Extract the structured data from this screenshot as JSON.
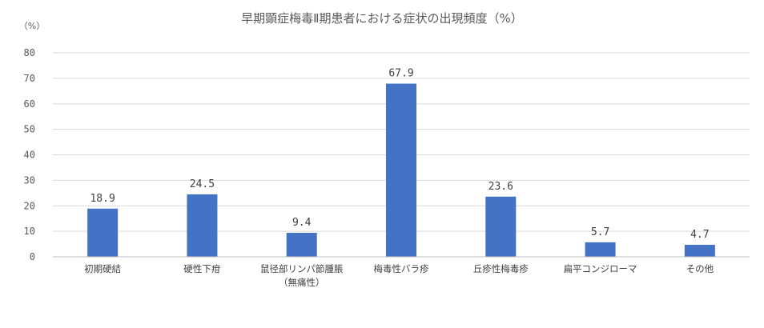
{
  "chart_data": {
    "type": "bar",
    "title": "早期顕症梅毒Ⅱ期患者における症状の出現頻度（%）",
    "ylabel": "（%）",
    "xlabel": "",
    "ylim": [
      0,
      80
    ],
    "yticks": [
      0,
      10,
      20,
      30,
      40,
      50,
      60,
      70,
      80
    ],
    "grid": true,
    "legend": "none",
    "bar_color": "#4472C4",
    "categories": [
      [
        "初期硬結"
      ],
      [
        "硬性下疳"
      ],
      [
        "鼠径部リンパ節腫脹",
        "（無痛性）"
      ],
      [
        "梅毒性バラ疹"
      ],
      [
        "丘疹性梅毒疹"
      ],
      [
        "扁平コンジローマ"
      ],
      [
        "その他"
      ]
    ],
    "values": [
      18.9,
      24.5,
      9.4,
      67.9,
      23.6,
      5.7,
      4.7
    ],
    "value_labels": [
      "18.9",
      "24.5",
      "9.4",
      "67.9",
      "23.6",
      "5.7",
      "4.7"
    ]
  }
}
